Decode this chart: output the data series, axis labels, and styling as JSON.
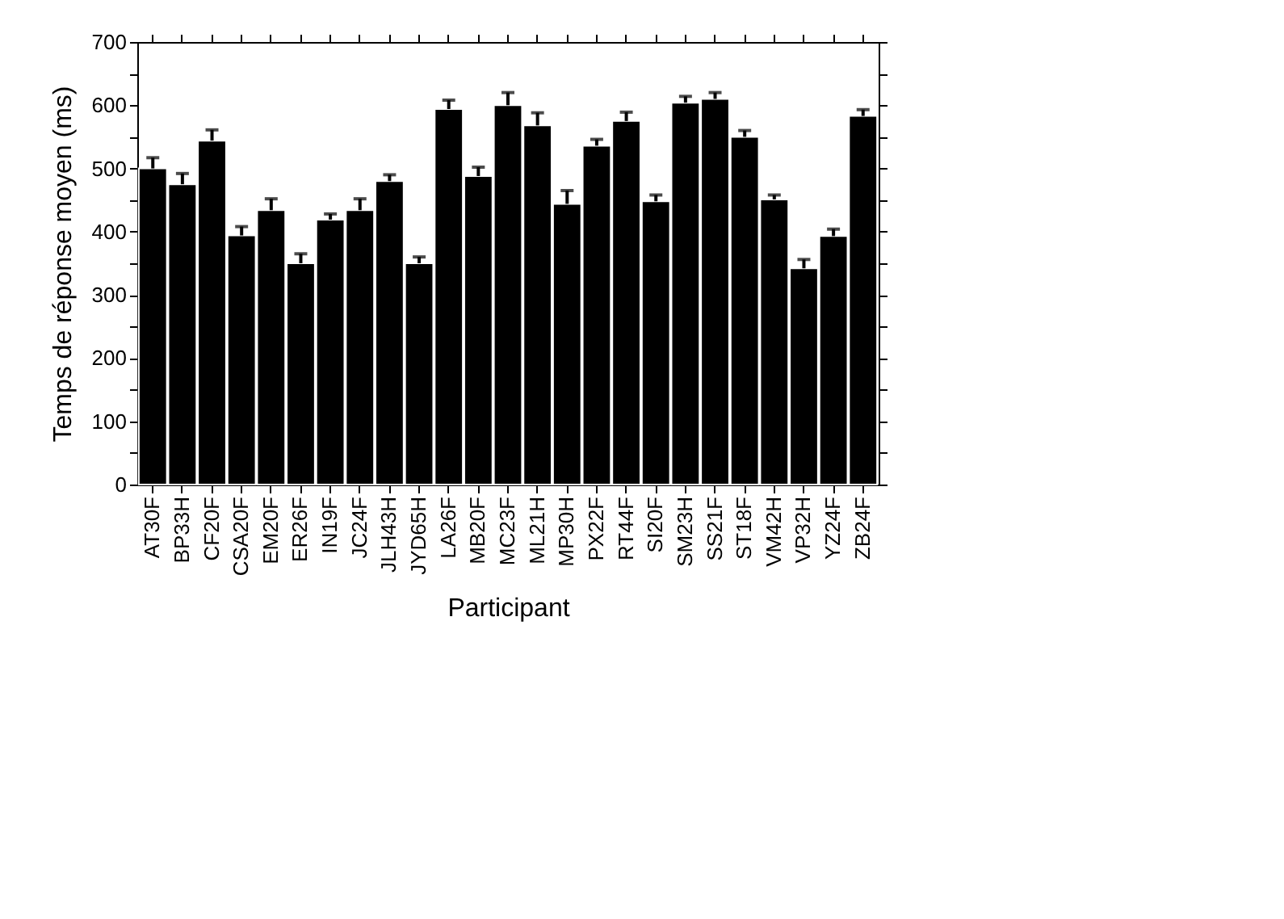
{
  "chart_data": {
    "type": "bar",
    "xlabel": "Participant",
    "ylabel": "Temps de réponse moyen (ms)",
    "categories": [
      "AT30F",
      "BP33H",
      "CF20F",
      "CSA20F",
      "EM20F",
      "ER26F",
      "IN19F",
      "JC24F",
      "JLH43H",
      "JYD65H",
      "LA26F",
      "MB20F",
      "MC23F",
      "ML21H",
      "MP30H",
      "PX22F",
      "RT44F",
      "SI20F",
      "SM23H",
      "SS21F",
      "ST18F",
      "VM42H",
      "VP32H",
      "YZ24F",
      "ZB24F"
    ],
    "values": [
      500,
      475,
      544,
      394,
      434,
      350,
      419,
      434,
      480,
      350,
      594,
      488,
      600,
      568,
      444,
      536,
      575,
      448,
      604,
      610,
      550,
      451,
      342,
      393,
      583
    ],
    "errors": [
      [
        500,
        517
      ],
      [
        475,
        492
      ],
      [
        544,
        561
      ],
      [
        394,
        408
      ],
      [
        434,
        452
      ],
      [
        350,
        365
      ],
      [
        419,
        428
      ],
      [
        434,
        452
      ],
      [
        480,
        490
      ],
      [
        350,
        360
      ],
      [
        594,
        608
      ],
      [
        488,
        502
      ],
      [
        600,
        620
      ],
      [
        568,
        588
      ],
      [
        444,
        465
      ],
      [
        536,
        546
      ],
      [
        575,
        589
      ],
      [
        448,
        458
      ],
      [
        604,
        614
      ],
      [
        610,
        620
      ],
      [
        550,
        560
      ],
      [
        451,
        458
      ],
      [
        342,
        356
      ],
      [
        393,
        404
      ],
      [
        583,
        593
      ]
    ],
    "color": "#000000",
    "ylim": [
      0,
      700
    ],
    "yticks": [
      0,
      {
        "value": 50,
        "label": null
      },
      100,
      {
        "value": 150,
        "label": null
      },
      200,
      {
        "value": 250,
        "label": null
      },
      300,
      {
        "value": 350,
        "label": null
      },
      400,
      {
        "value": 450,
        "label": null
      },
      500,
      {
        "value": 550,
        "label": null
      },
      600,
      {
        "value": 650,
        "label": null
      },
      700
    ],
    "grid": false
  }
}
